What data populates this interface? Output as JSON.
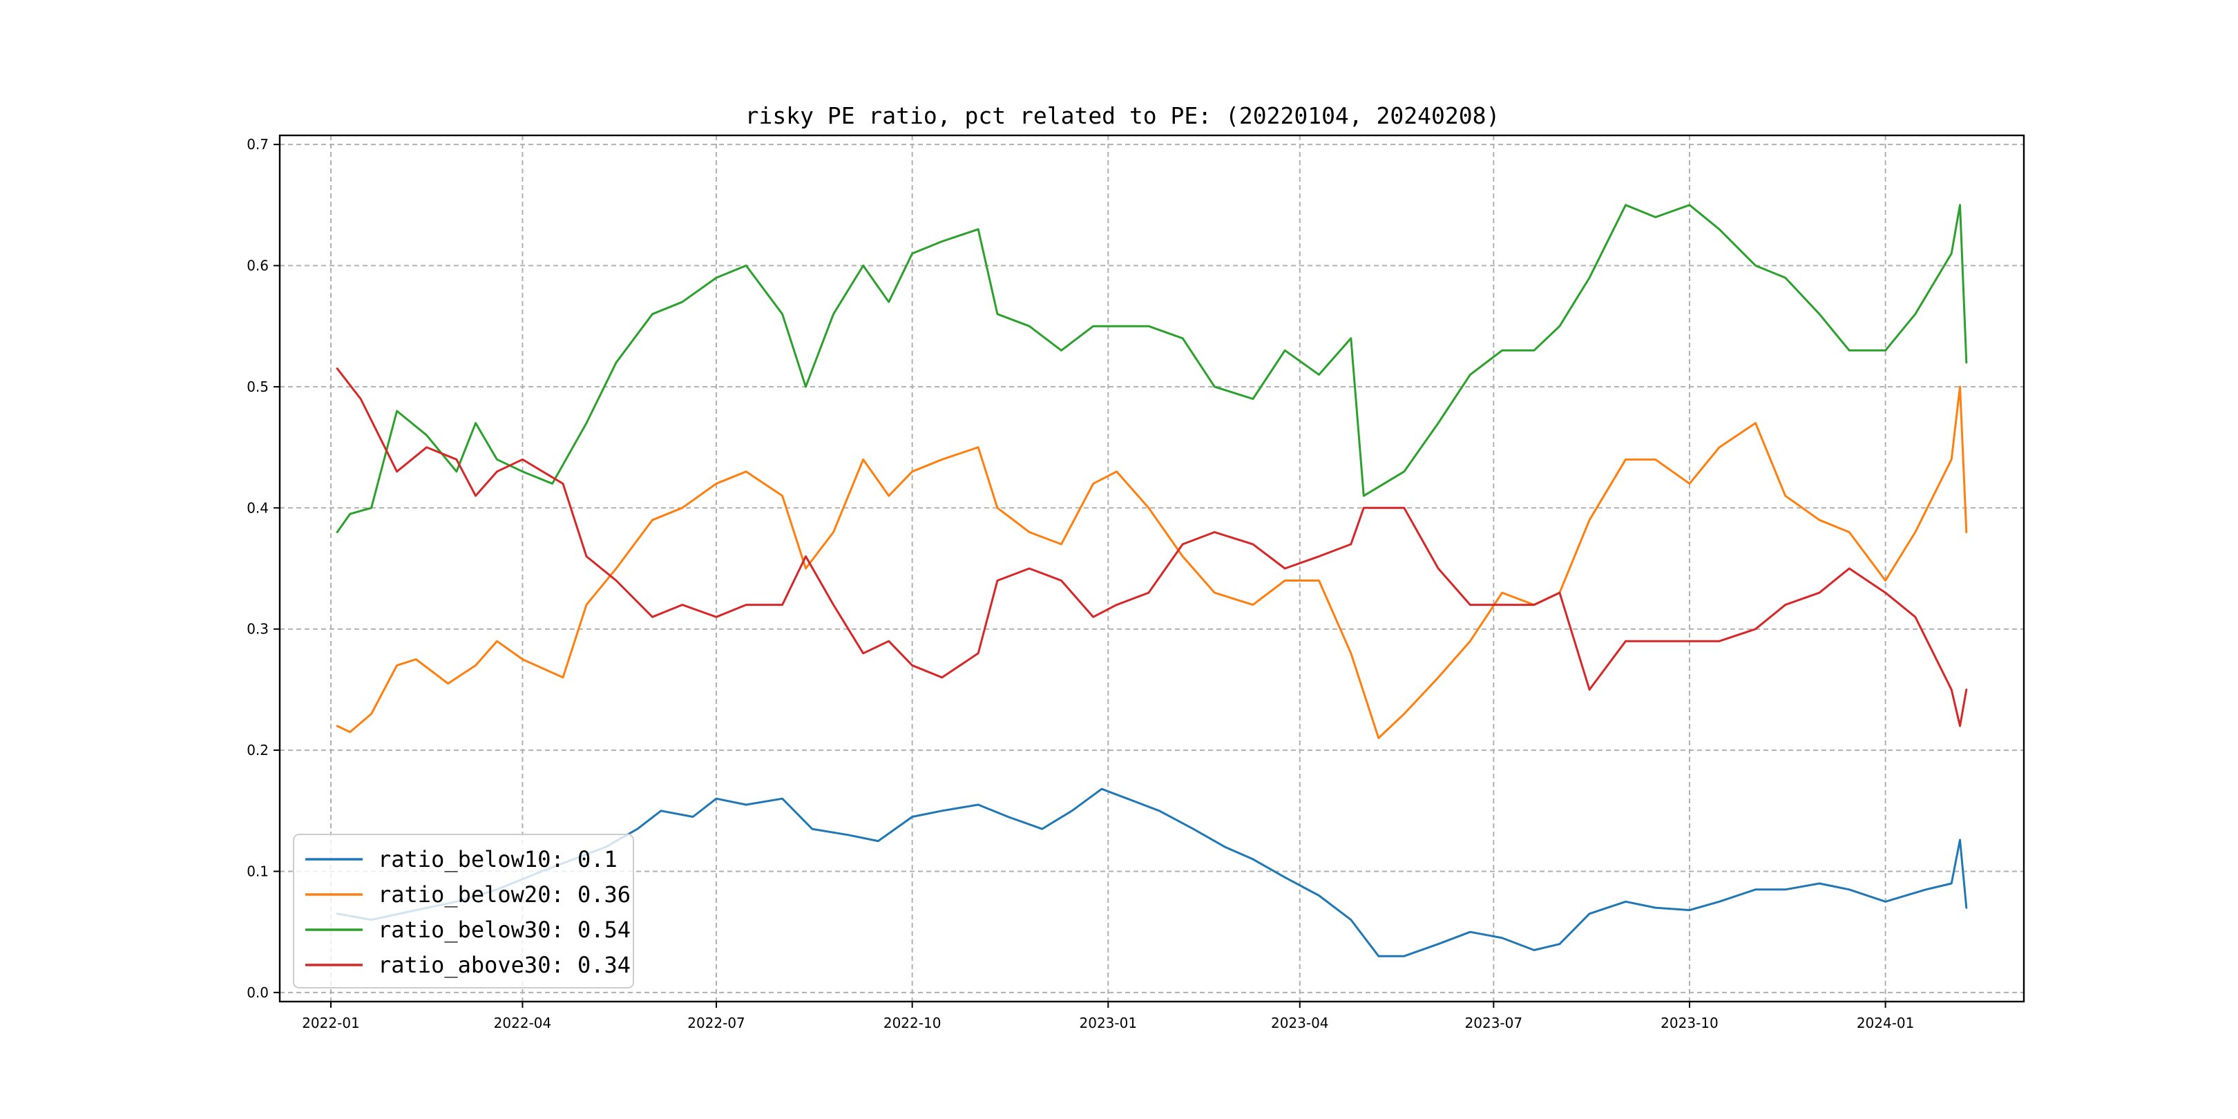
{
  "chart_data": {
    "type": "line",
    "title": "risky PE ratio, pct related to PE: (20220104, 20240208)",
    "xlabel": "",
    "ylabel": "",
    "x_range": [
      "2021-12-08",
      "2024-03-06"
    ],
    "ylim": [
      -0.0075,
      0.7075
    ],
    "grid": true,
    "legend_position": "lower left",
    "x_ticks": [
      "2022-01",
      "2022-04",
      "2022-07",
      "2022-10",
      "2023-01",
      "2023-04",
      "2023-07",
      "2023-10",
      "2024-01"
    ],
    "y_ticks": [
      "0.0",
      "0.1",
      "0.2",
      "0.3",
      "0.4",
      "0.5",
      "0.6",
      "0.7"
    ],
    "series": [
      {
        "name": "ratio_below10",
        "legend_label": "ratio_below10: 0.1",
        "color": "#1f77b4",
        "points": [
          [
            "2022-01-04",
            0.065
          ],
          [
            "2022-01-20",
            0.06
          ],
          [
            "2022-02-10",
            0.068
          ],
          [
            "2022-03-01",
            0.075
          ],
          [
            "2022-03-20",
            0.085
          ],
          [
            "2022-04-10",
            0.1
          ],
          [
            "2022-04-25",
            0.11
          ],
          [
            "2022-05-10",
            0.12
          ],
          [
            "2022-05-25",
            0.135
          ],
          [
            "2022-06-05",
            0.15
          ],
          [
            "2022-06-20",
            0.145
          ],
          [
            "2022-07-01",
            0.16
          ],
          [
            "2022-07-15",
            0.155
          ],
          [
            "2022-08-01",
            0.16
          ],
          [
            "2022-08-15",
            0.135
          ],
          [
            "2022-09-01",
            0.13
          ],
          [
            "2022-09-15",
            0.125
          ],
          [
            "2022-10-01",
            0.145
          ],
          [
            "2022-10-15",
            0.15
          ],
          [
            "2022-11-01",
            0.155
          ],
          [
            "2022-11-15",
            0.145
          ],
          [
            "2022-12-01",
            0.135
          ],
          [
            "2022-12-15",
            0.15
          ],
          [
            "2022-12-29",
            0.168
          ],
          [
            "2023-01-10",
            0.16
          ],
          [
            "2023-01-25",
            0.15
          ],
          [
            "2023-02-10",
            0.135
          ],
          [
            "2023-02-25",
            0.12
          ],
          [
            "2023-03-10",
            0.11
          ],
          [
            "2023-03-25",
            0.095
          ],
          [
            "2023-04-10",
            0.08
          ],
          [
            "2023-04-25",
            0.06
          ],
          [
            "2023-05-08",
            0.03
          ],
          [
            "2023-05-20",
            0.03
          ],
          [
            "2023-06-05",
            0.04
          ],
          [
            "2023-06-20",
            0.05
          ],
          [
            "2023-07-05",
            0.045
          ],
          [
            "2023-07-20",
            0.035
          ],
          [
            "2023-08-01",
            0.04
          ],
          [
            "2023-08-15",
            0.065
          ],
          [
            "2023-09-01",
            0.075
          ],
          [
            "2023-09-15",
            0.07
          ],
          [
            "2023-10-01",
            0.068
          ],
          [
            "2023-10-15",
            0.075
          ],
          [
            "2023-11-01",
            0.085
          ],
          [
            "2023-11-15",
            0.085
          ],
          [
            "2023-12-01",
            0.09
          ],
          [
            "2023-12-15",
            0.085
          ],
          [
            "2024-01-01",
            0.075
          ],
          [
            "2024-01-20",
            0.085
          ],
          [
            "2024-02-01",
            0.09
          ],
          [
            "2024-02-05",
            0.126
          ],
          [
            "2024-02-08",
            0.07
          ]
        ]
      },
      {
        "name": "ratio_below20",
        "legend_label": "ratio_below20: 0.36",
        "color": "#ff7f0e",
        "points": [
          [
            "2022-01-04",
            0.22
          ],
          [
            "2022-01-10",
            0.215
          ],
          [
            "2022-01-20",
            0.23
          ],
          [
            "2022-02-01",
            0.27
          ],
          [
            "2022-02-10",
            0.275
          ],
          [
            "2022-02-25",
            0.255
          ],
          [
            "2022-03-10",
            0.27
          ],
          [
            "2022-03-20",
            0.29
          ],
          [
            "2022-04-01",
            0.275
          ],
          [
            "2022-04-20",
            0.26
          ],
          [
            "2022-05-01",
            0.32
          ],
          [
            "2022-05-15",
            0.35
          ],
          [
            "2022-06-01",
            0.39
          ],
          [
            "2022-06-15",
            0.4
          ],
          [
            "2022-07-01",
            0.42
          ],
          [
            "2022-07-15",
            0.43
          ],
          [
            "2022-08-01",
            0.41
          ],
          [
            "2022-08-12",
            0.35
          ],
          [
            "2022-08-25",
            0.38
          ],
          [
            "2022-09-08",
            0.44
          ],
          [
            "2022-09-20",
            0.41
          ],
          [
            "2022-10-01",
            0.43
          ],
          [
            "2022-10-15",
            0.44
          ],
          [
            "2022-11-01",
            0.45
          ],
          [
            "2022-11-10",
            0.4
          ],
          [
            "2022-11-25",
            0.38
          ],
          [
            "2022-12-10",
            0.37
          ],
          [
            "2022-12-25",
            0.42
          ],
          [
            "2023-01-05",
            0.43
          ],
          [
            "2023-01-20",
            0.4
          ],
          [
            "2023-02-05",
            0.36
          ],
          [
            "2023-02-20",
            0.33
          ],
          [
            "2023-03-10",
            0.32
          ],
          [
            "2023-03-25",
            0.34
          ],
          [
            "2023-04-10",
            0.34
          ],
          [
            "2023-04-25",
            0.28
          ],
          [
            "2023-05-08",
            0.21
          ],
          [
            "2023-05-20",
            0.23
          ],
          [
            "2023-06-05",
            0.26
          ],
          [
            "2023-06-20",
            0.29
          ],
          [
            "2023-07-05",
            0.33
          ],
          [
            "2023-07-20",
            0.32
          ],
          [
            "2023-08-01",
            0.33
          ],
          [
            "2023-08-15",
            0.39
          ],
          [
            "2023-09-01",
            0.44
          ],
          [
            "2023-09-15",
            0.44
          ],
          [
            "2023-10-01",
            0.42
          ],
          [
            "2023-10-15",
            0.45
          ],
          [
            "2023-11-01",
            0.47
          ],
          [
            "2023-11-15",
            0.41
          ],
          [
            "2023-12-01",
            0.39
          ],
          [
            "2023-12-15",
            0.38
          ],
          [
            "2024-01-01",
            0.34
          ],
          [
            "2024-01-15",
            0.38
          ],
          [
            "2024-02-01",
            0.44
          ],
          [
            "2024-02-05",
            0.5
          ],
          [
            "2024-02-08",
            0.38
          ]
        ]
      },
      {
        "name": "ratio_below30",
        "legend_label": "ratio_below30: 0.54",
        "color": "#2ca02c",
        "points": [
          [
            "2022-01-04",
            0.38
          ],
          [
            "2022-01-10",
            0.395
          ],
          [
            "2022-01-20",
            0.4
          ],
          [
            "2022-02-01",
            0.48
          ],
          [
            "2022-02-15",
            0.46
          ],
          [
            "2022-03-01",
            0.43
          ],
          [
            "2022-03-10",
            0.47
          ],
          [
            "2022-03-20",
            0.44
          ],
          [
            "2022-04-01",
            0.43
          ],
          [
            "2022-04-15",
            0.42
          ],
          [
            "2022-05-01",
            0.47
          ],
          [
            "2022-05-15",
            0.52
          ],
          [
            "2022-06-01",
            0.56
          ],
          [
            "2022-06-15",
            0.57
          ],
          [
            "2022-07-01",
            0.59
          ],
          [
            "2022-07-15",
            0.6
          ],
          [
            "2022-08-01",
            0.56
          ],
          [
            "2022-08-12",
            0.5
          ],
          [
            "2022-08-25",
            0.56
          ],
          [
            "2022-09-08",
            0.6
          ],
          [
            "2022-09-20",
            0.57
          ],
          [
            "2022-10-01",
            0.61
          ],
          [
            "2022-10-15",
            0.62
          ],
          [
            "2022-11-01",
            0.63
          ],
          [
            "2022-11-10",
            0.56
          ],
          [
            "2022-11-25",
            0.55
          ],
          [
            "2022-12-10",
            0.53
          ],
          [
            "2022-12-25",
            0.55
          ],
          [
            "2023-01-05",
            0.55
          ],
          [
            "2023-01-20",
            0.55
          ],
          [
            "2023-02-05",
            0.54
          ],
          [
            "2023-02-20",
            0.5
          ],
          [
            "2023-03-10",
            0.49
          ],
          [
            "2023-03-25",
            0.53
          ],
          [
            "2023-04-10",
            0.51
          ],
          [
            "2023-04-25",
            0.54
          ],
          [
            "2023-05-01",
            0.41
          ],
          [
            "2023-05-20",
            0.43
          ],
          [
            "2023-06-05",
            0.47
          ],
          [
            "2023-06-20",
            0.51
          ],
          [
            "2023-07-05",
            0.53
          ],
          [
            "2023-07-20",
            0.53
          ],
          [
            "2023-08-01",
            0.55
          ],
          [
            "2023-08-15",
            0.59
          ],
          [
            "2023-09-01",
            0.65
          ],
          [
            "2023-09-15",
            0.64
          ],
          [
            "2023-10-01",
            0.65
          ],
          [
            "2023-10-15",
            0.63
          ],
          [
            "2023-11-01",
            0.6
          ],
          [
            "2023-11-15",
            0.59
          ],
          [
            "2023-12-01",
            0.56
          ],
          [
            "2023-12-15",
            0.53
          ],
          [
            "2024-01-01",
            0.53
          ],
          [
            "2024-01-15",
            0.56
          ],
          [
            "2024-02-01",
            0.61
          ],
          [
            "2024-02-05",
            0.65
          ],
          [
            "2024-02-08",
            0.52
          ]
        ]
      },
      {
        "name": "ratio_above30",
        "legend_label": "ratio_above30: 0.34",
        "color": "#d62728",
        "points": [
          [
            "2022-01-04",
            0.515
          ],
          [
            "2022-01-15",
            0.49
          ],
          [
            "2022-02-01",
            0.43
          ],
          [
            "2022-02-15",
            0.45
          ],
          [
            "2022-03-01",
            0.44
          ],
          [
            "2022-03-10",
            0.41
          ],
          [
            "2022-03-20",
            0.43
          ],
          [
            "2022-04-01",
            0.44
          ],
          [
            "2022-04-20",
            0.42
          ],
          [
            "2022-05-01",
            0.36
          ],
          [
            "2022-05-15",
            0.34
          ],
          [
            "2022-06-01",
            0.31
          ],
          [
            "2022-06-15",
            0.32
          ],
          [
            "2022-07-01",
            0.31
          ],
          [
            "2022-07-15",
            0.32
          ],
          [
            "2022-08-01",
            0.32
          ],
          [
            "2022-08-12",
            0.36
          ],
          [
            "2022-08-25",
            0.32
          ],
          [
            "2022-09-08",
            0.28
          ],
          [
            "2022-09-20",
            0.29
          ],
          [
            "2022-10-01",
            0.27
          ],
          [
            "2022-10-15",
            0.26
          ],
          [
            "2022-11-01",
            0.28
          ],
          [
            "2022-11-10",
            0.34
          ],
          [
            "2022-11-25",
            0.35
          ],
          [
            "2022-12-10",
            0.34
          ],
          [
            "2022-12-25",
            0.31
          ],
          [
            "2023-01-05",
            0.32
          ],
          [
            "2023-01-20",
            0.33
          ],
          [
            "2023-02-05",
            0.37
          ],
          [
            "2023-02-20",
            0.38
          ],
          [
            "2023-03-10",
            0.37
          ],
          [
            "2023-03-25",
            0.35
          ],
          [
            "2023-04-10",
            0.36
          ],
          [
            "2023-04-25",
            0.37
          ],
          [
            "2023-05-01",
            0.4
          ],
          [
            "2023-05-20",
            0.4
          ],
          [
            "2023-06-05",
            0.35
          ],
          [
            "2023-06-20",
            0.32
          ],
          [
            "2023-07-05",
            0.32
          ],
          [
            "2023-07-20",
            0.32
          ],
          [
            "2023-08-01",
            0.33
          ],
          [
            "2023-08-15",
            0.25
          ],
          [
            "2023-09-01",
            0.29
          ],
          [
            "2023-09-15",
            0.29
          ],
          [
            "2023-10-01",
            0.29
          ],
          [
            "2023-10-15",
            0.29
          ],
          [
            "2023-11-01",
            0.3
          ],
          [
            "2023-11-15",
            0.32
          ],
          [
            "2023-12-01",
            0.33
          ],
          [
            "2023-12-15",
            0.35
          ],
          [
            "2024-01-01",
            0.33
          ],
          [
            "2024-01-15",
            0.31
          ],
          [
            "2024-02-01",
            0.25
          ],
          [
            "2024-02-05",
            0.22
          ],
          [
            "2024-02-08",
            0.25
          ]
        ]
      }
    ]
  }
}
